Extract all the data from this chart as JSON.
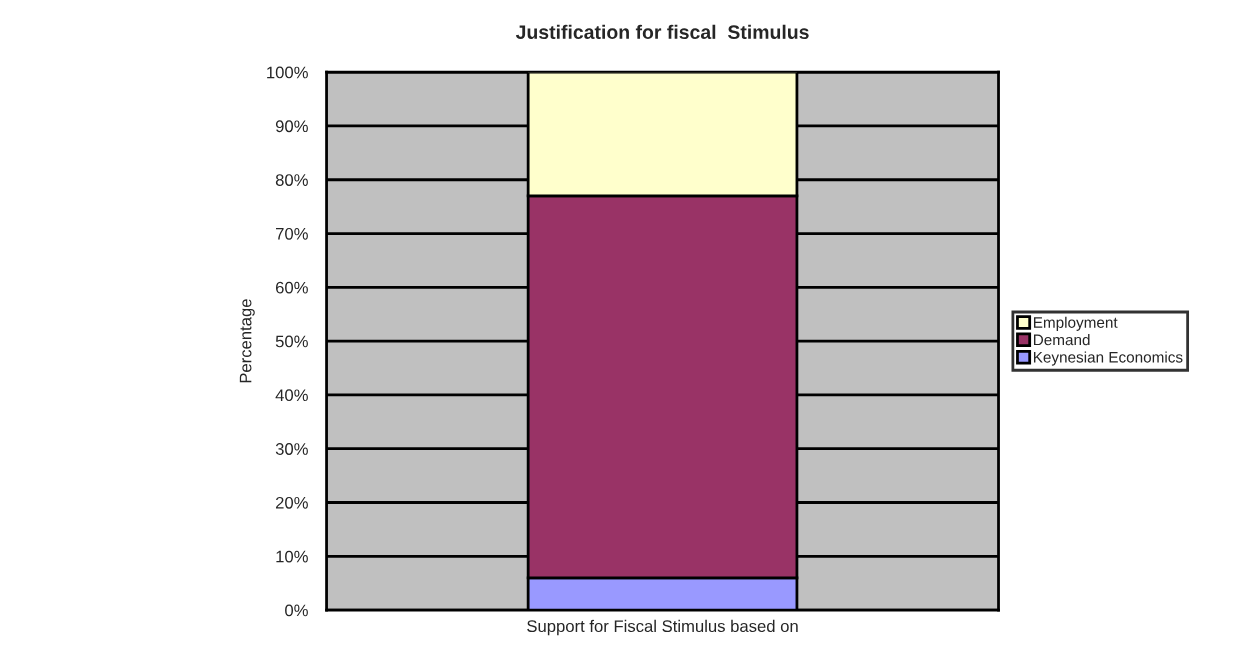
{
  "chart_data": {
    "type": "bar",
    "title": "Justification for fiscal  Stimulus",
    "ylabel": "Percentage",
    "categories": [
      "Support for Fiscal Stimulus based on"
    ],
    "stacked": true,
    "series": [
      {
        "name": "Keynesian Economics",
        "color": "#9999ff",
        "values": [
          6
        ]
      },
      {
        "name": "Demand",
        "color": "#993366",
        "values": [
          71
        ]
      },
      {
        "name": "Employment",
        "color": "#ffffcc",
        "values": [
          23
        ]
      }
    ],
    "ylim": [
      0,
      100
    ],
    "yticks": [
      {
        "value": 0,
        "label": "0%"
      },
      {
        "value": 10,
        "label": "10%"
      },
      {
        "value": 20,
        "label": "20%"
      },
      {
        "value": 30,
        "label": "30%"
      },
      {
        "value": 40,
        "label": "40%"
      },
      {
        "value": 50,
        "label": "50%"
      },
      {
        "value": 60,
        "label": "60%"
      },
      {
        "value": 70,
        "label": "70%"
      },
      {
        "value": 80,
        "label": "80%"
      },
      {
        "value": 90,
        "label": "90%"
      },
      {
        "value": 100,
        "label": "100%"
      }
    ],
    "grid": "y",
    "legend": "right"
  }
}
